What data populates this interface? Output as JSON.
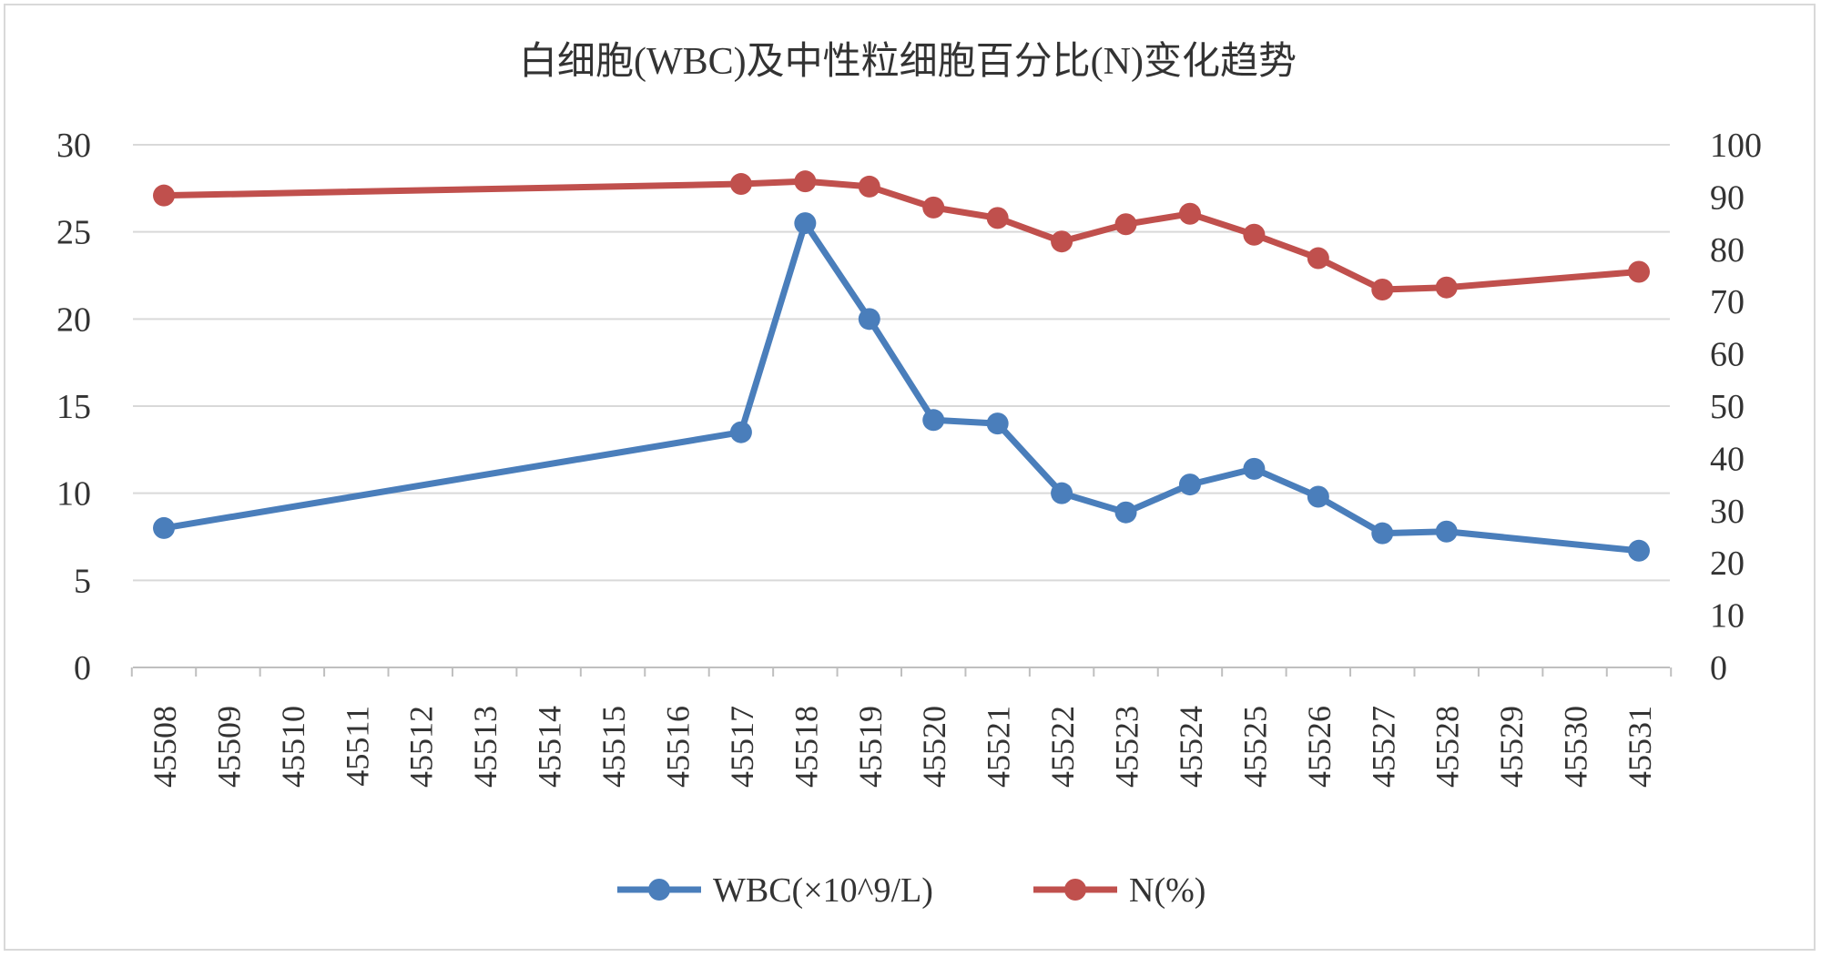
{
  "chart_data": {
    "type": "line",
    "title": "白细胞(WBC)及中性粒细胞百分比(N)变化趋势",
    "x": [
      45508,
      45509,
      45510,
      45511,
      45512,
      45513,
      45514,
      45515,
      45516,
      45517,
      45518,
      45519,
      45520,
      45521,
      45522,
      45523,
      45524,
      45525,
      45526,
      45527,
      45528,
      45529,
      45530,
      45531
    ],
    "x_tick_labels": [
      "45508",
      "45509",
      "45510",
      "45511",
      "45512",
      "45513",
      "45514",
      "45515",
      "45516",
      "45517",
      "45518",
      "45519",
      "45520",
      "45521",
      "45522",
      "45523",
      "45524",
      "45525",
      "45526",
      "45527",
      "45528",
      "45529",
      "45530",
      "45531"
    ],
    "y_left": {
      "lim": [
        0,
        30
      ],
      "ticks": [
        "0",
        "5",
        "10",
        "15",
        "20",
        "25",
        "30"
      ],
      "tick_values": [
        0,
        5,
        10,
        15,
        20,
        25,
        30
      ]
    },
    "y_right": {
      "lim": [
        0,
        100
      ],
      "ticks": [
        "0",
        "10",
        "20",
        "30",
        "40",
        "50",
        "60",
        "70",
        "80",
        "90",
        "100"
      ],
      "tick_values": [
        0,
        10,
        20,
        30,
        40,
        50,
        60,
        70,
        80,
        90,
        100
      ]
    },
    "grid": true,
    "legend_position": "bottom",
    "series": [
      {
        "name": "WBC(×10^9/L)",
        "axis": "left",
        "color": "#4a7ebb",
        "points": [
          {
            "x": 45508,
            "y": 8.0
          },
          {
            "x": 45517,
            "y": 13.5
          },
          {
            "x": 45518,
            "y": 25.5
          },
          {
            "x": 45519,
            "y": 20.0
          },
          {
            "x": 45520,
            "y": 14.2
          },
          {
            "x": 45521,
            "y": 14.0
          },
          {
            "x": 45522,
            "y": 10.0
          },
          {
            "x": 45523,
            "y": 8.9
          },
          {
            "x": 45524,
            "y": 10.5
          },
          {
            "x": 45525,
            "y": 11.4
          },
          {
            "x": 45526,
            "y": 9.8
          },
          {
            "x": 45527,
            "y": 7.7
          },
          {
            "x": 45528,
            "y": 7.8
          },
          {
            "x": 45531,
            "y": 6.7
          }
        ]
      },
      {
        "name": "N(%)",
        "axis": "right",
        "color": "#c0504d",
        "points": [
          {
            "x": 45508,
            "y": 90.3
          },
          {
            "x": 45517,
            "y": 92.5
          },
          {
            "x": 45518,
            "y": 93.0
          },
          {
            "x": 45519,
            "y": 92.0
          },
          {
            "x": 45520,
            "y": 88.0
          },
          {
            "x": 45521,
            "y": 86.0
          },
          {
            "x": 45522,
            "y": 81.5
          },
          {
            "x": 45523,
            "y": 84.8
          },
          {
            "x": 45524,
            "y": 86.8
          },
          {
            "x": 45525,
            "y": 82.8
          },
          {
            "x": 45526,
            "y": 78.3
          },
          {
            "x": 45527,
            "y": 72.3
          },
          {
            "x": 45528,
            "y": 72.7
          },
          {
            "x": 45531,
            "y": 75.7
          }
        ]
      }
    ]
  }
}
